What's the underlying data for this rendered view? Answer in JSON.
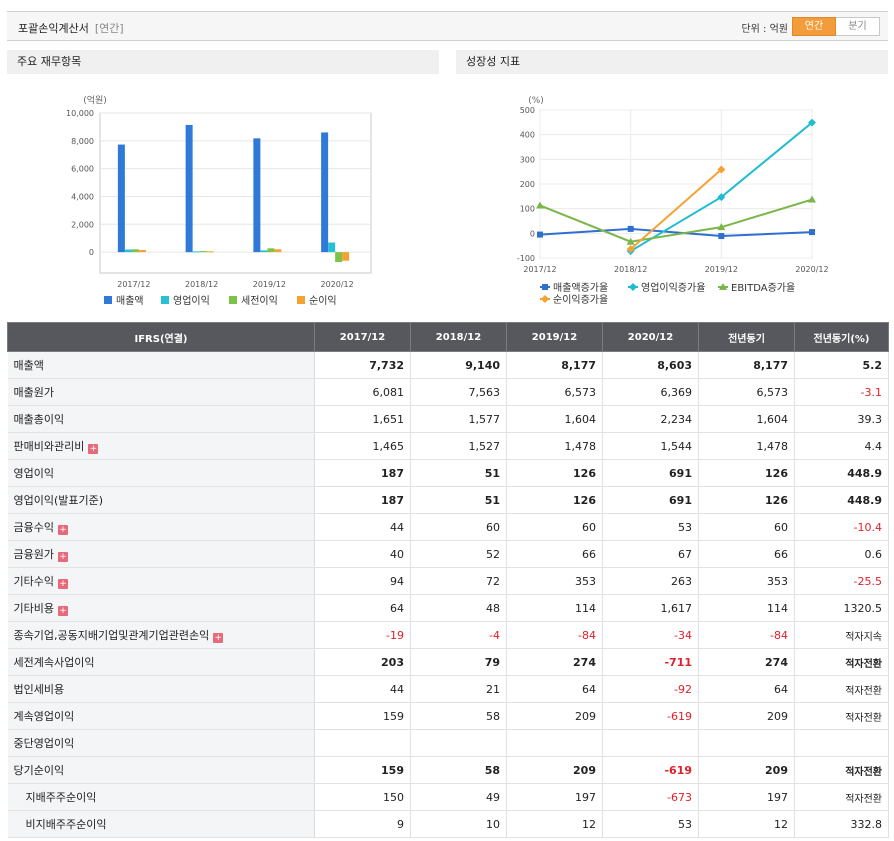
{
  "header": {
    "title": "포괄손익계산서",
    "sub": "[연간]",
    "unit": "단위 : 억원",
    "toggle_on": "연간",
    "toggle_off": "분기"
  },
  "panels": {
    "left_title": "주요 재무항목",
    "right_title": "성장성 지표"
  },
  "chart_data": [
    {
      "type": "bar",
      "title": "",
      "ylabel": "(억원)",
      "ylim": [
        -1500,
        10000
      ],
      "yticks": [
        0,
        2000,
        4000,
        6000,
        8000,
        10000
      ],
      "ytick_labels": [
        "0",
        "2,000",
        "4,000",
        "6,000",
        "8,000",
        "10,000"
      ],
      "categories": [
        "2017/12",
        "2018/12",
        "2019/12",
        "2020/12"
      ],
      "series": [
        {
          "name": "매출액",
          "color": "#2f7ad8",
          "values": [
            7732,
            9140,
            8177,
            8603
          ]
        },
        {
          "name": "영업이익",
          "color": "#26c1d6",
          "values": [
            187,
            51,
            126,
            691
          ]
        },
        {
          "name": "세전이익",
          "color": "#7ec24a",
          "values": [
            203,
            79,
            274,
            -711
          ]
        },
        {
          "name": "순이익",
          "color": "#f5a233",
          "values": [
            159,
            58,
            209,
            -619
          ]
        }
      ],
      "legend_position": "bottom"
    },
    {
      "type": "line",
      "title": "",
      "ylabel": "(%)",
      "ylim": [
        -100,
        500
      ],
      "yticks": [
        -100,
        0,
        100,
        200,
        300,
        400,
        500
      ],
      "categories": [
        "2017/12",
        "2018/12",
        "2019/12",
        "2020/12"
      ],
      "series": [
        {
          "name": "매출액증가율",
          "color": "#2f6fd0",
          "marker": "square",
          "values": [
            -5,
            18,
            -11,
            5
          ]
        },
        {
          "name": "영업이익증가율",
          "color": "#1fbcd2",
          "marker": "diamond",
          "values": [
            null,
            -72,
            147,
            449
          ]
        },
        {
          "name": "EBITDA증가율",
          "color": "#7ab648",
          "marker": "triangle",
          "values": [
            113,
            -34,
            25,
            137
          ]
        },
        {
          "name": "순이익증가율",
          "color": "#f5a233",
          "marker": "diamond",
          "values": [
            null,
            -64,
            259,
            null
          ]
        }
      ],
      "legend_position": "bottom"
    }
  ],
  "table": {
    "headers": [
      "IFRS(연결)",
      "2017/12",
      "2018/12",
      "2019/12",
      "2020/12",
      "전년동기",
      "전년동기(%)"
    ],
    "rows": [
      {
        "label": "매출액",
        "bold": true,
        "plus": false,
        "indent": false,
        "values": [
          "7,732",
          "9,140",
          "8,177",
          "8,603",
          "8,177",
          "5.2"
        ]
      },
      {
        "label": "매출원가",
        "bold": false,
        "plus": false,
        "indent": false,
        "values": [
          "6,081",
          "7,563",
          "6,573",
          "6,369",
          "6,573",
          "-3.1"
        ]
      },
      {
        "label": "매출총이익",
        "bold": false,
        "plus": false,
        "indent": false,
        "values": [
          "1,651",
          "1,577",
          "1,604",
          "2,234",
          "1,604",
          "39.3"
        ]
      },
      {
        "label": "판매비와관리비",
        "bold": false,
        "plus": true,
        "indent": false,
        "values": [
          "1,465",
          "1,527",
          "1,478",
          "1,544",
          "1,478",
          "4.4"
        ]
      },
      {
        "label": "영업이익",
        "bold": true,
        "plus": false,
        "indent": false,
        "values": [
          "187",
          "51",
          "126",
          "691",
          "126",
          "448.9"
        ]
      },
      {
        "label": "영업이익(발표기준)",
        "bold": true,
        "plus": false,
        "indent": false,
        "values": [
          "187",
          "51",
          "126",
          "691",
          "126",
          "448.9"
        ]
      },
      {
        "label": "금융수익",
        "bold": false,
        "plus": true,
        "indent": false,
        "values": [
          "44",
          "60",
          "60",
          "53",
          "60",
          "-10.4"
        ]
      },
      {
        "label": "금융원가",
        "bold": false,
        "plus": true,
        "indent": false,
        "values": [
          "40",
          "52",
          "66",
          "67",
          "66",
          "0.6"
        ]
      },
      {
        "label": "기타수익",
        "bold": false,
        "plus": true,
        "indent": false,
        "values": [
          "94",
          "72",
          "353",
          "263",
          "353",
          "-25.5"
        ]
      },
      {
        "label": "기타비용",
        "bold": false,
        "plus": true,
        "indent": false,
        "values": [
          "64",
          "48",
          "114",
          "1,617",
          "114",
          "1320.5"
        ]
      },
      {
        "label": "종속기업,공동지배기업및관계기업관련손익",
        "bold": false,
        "plus": true,
        "indent": false,
        "values": [
          "-19",
          "-4",
          "-84",
          "-34",
          "-84",
          "적자지속"
        ]
      },
      {
        "label": "세전계속사업이익",
        "bold": true,
        "plus": false,
        "indent": false,
        "values": [
          "203",
          "79",
          "274",
          "-711",
          "274",
          "적자전환"
        ]
      },
      {
        "label": "법인세비용",
        "bold": false,
        "plus": false,
        "indent": false,
        "values": [
          "44",
          "21",
          "64",
          "-92",
          "64",
          "적자전환"
        ]
      },
      {
        "label": "계속영업이익",
        "bold": false,
        "plus": false,
        "indent": false,
        "values": [
          "159",
          "58",
          "209",
          "-619",
          "209",
          "적자전환"
        ]
      },
      {
        "label": "중단영업이익",
        "bold": false,
        "plus": false,
        "indent": false,
        "values": [
          "",
          "",
          "",
          "",
          "",
          ""
        ]
      },
      {
        "label": "당기순이익",
        "bold": true,
        "plus": false,
        "indent": false,
        "values": [
          "159",
          "58",
          "209",
          "-619",
          "209",
          "적자전환"
        ]
      },
      {
        "label": "지배주주순이익",
        "bold": false,
        "plus": false,
        "indent": true,
        "values": [
          "150",
          "49",
          "197",
          "-673",
          "197",
          "적자전환"
        ]
      },
      {
        "label": "비지배주주순이익",
        "bold": false,
        "plus": false,
        "indent": true,
        "values": [
          "9",
          "10",
          "12",
          "53",
          "12",
          "332.8"
        ]
      }
    ]
  }
}
